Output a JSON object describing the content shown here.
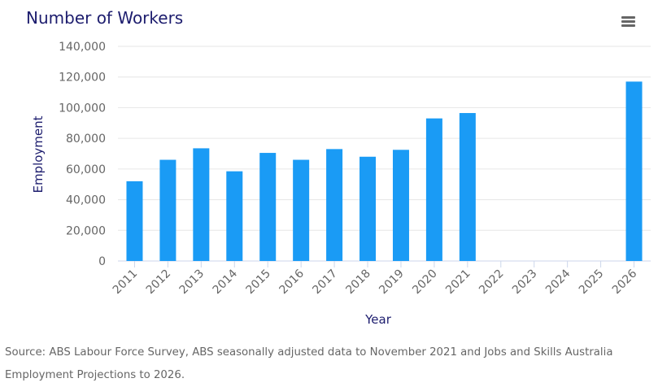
{
  "title": "Number of Workers",
  "menu_icon": "hamburger-menu-icon",
  "colors": {
    "bar": "#1a9bf5",
    "title": "#1d1d6e",
    "axis_label": "#1d1d6e",
    "tick": "#666666",
    "grid": "#e6e6e6"
  },
  "chart_data": {
    "type": "bar",
    "title": "Number of Workers",
    "xlabel": "Year",
    "ylabel": "Employment",
    "ylim": [
      0,
      140000
    ],
    "y_ticks": [
      0,
      20000,
      40000,
      60000,
      80000,
      100000,
      120000,
      140000
    ],
    "y_tick_labels": [
      "0",
      "20,000",
      "40,000",
      "60,000",
      "80,000",
      "100,000",
      "120,000",
      "140,000"
    ],
    "grid": true,
    "categories": [
      "2011",
      "2012",
      "2013",
      "2014",
      "2015",
      "2016",
      "2017",
      "2018",
      "2019",
      "2020",
      "2021",
      "2022",
      "2023",
      "2024",
      "2025",
      "2026"
    ],
    "values": [
      52000,
      66000,
      73500,
      58500,
      70500,
      66000,
      73000,
      68000,
      72500,
      93000,
      96500,
      null,
      null,
      null,
      null,
      117000
    ]
  },
  "source": "Source: ABS Labour Force Survey, ABS seasonally adjusted data to November 2021 and Jobs and Skills Australia Employment Projections to 2026."
}
